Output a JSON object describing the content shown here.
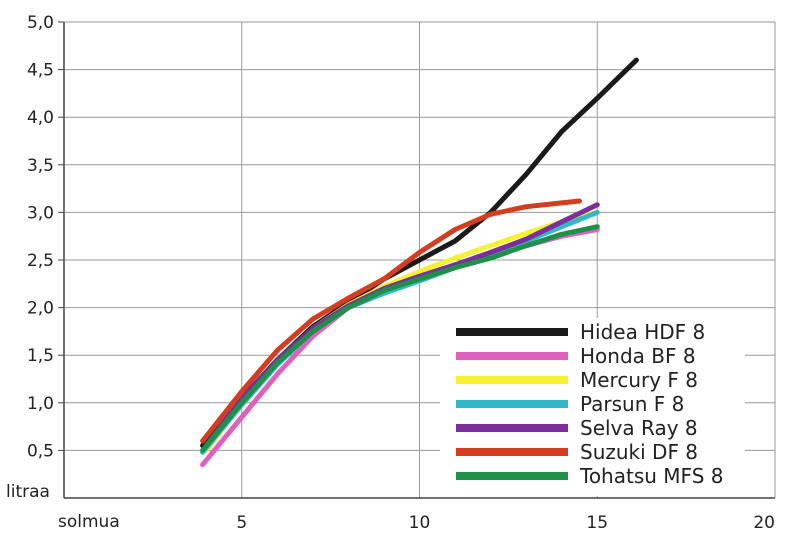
{
  "chart_data": {
    "type": "line",
    "title": "",
    "xlabel": "solmua",
    "ylabel": "litraa",
    "xlim": [
      0,
      20
    ],
    "ylim": [
      0,
      5.0
    ],
    "xticks": [
      5,
      10,
      15,
      20
    ],
    "yticks": [
      0.5,
      1.0,
      1.5,
      2.0,
      2.5,
      3.0,
      3.5,
      4.0,
      4.5,
      5.0
    ],
    "ytick_labels": [
      "0,5",
      "1,0",
      "1,5",
      "2,0",
      "2,5",
      "3,0",
      "3,5",
      "4,0",
      "4,5",
      "5,0"
    ],
    "xtick_labels": [
      "5",
      "10",
      "15",
      "20"
    ],
    "grid": true,
    "legend_position": "bottom-right",
    "series": [
      {
        "name": "Hidea HDF 8",
        "color": "#1a1a1a",
        "points": [
          [
            3.9,
            0.55
          ],
          [
            5,
            1.05
          ],
          [
            6,
            1.45
          ],
          [
            7,
            1.8
          ],
          [
            8,
            2.05
          ],
          [
            9,
            2.3
          ],
          [
            10,
            2.5
          ],
          [
            11,
            2.7
          ],
          [
            12,
            3.0
          ],
          [
            13,
            3.4
          ],
          [
            14,
            3.85
          ],
          [
            15,
            4.2
          ],
          [
            16.1,
            4.6
          ]
        ]
      },
      {
        "name": "Honda BF 8",
        "color": "#e060c0",
        "points": [
          [
            3.9,
            0.35
          ],
          [
            5,
            0.85
          ],
          [
            6,
            1.3
          ],
          [
            7,
            1.7
          ],
          [
            8,
            2.0
          ],
          [
            9,
            2.2
          ],
          [
            10,
            2.3
          ],
          [
            11,
            2.45
          ],
          [
            12,
            2.55
          ],
          [
            13,
            2.65
          ],
          [
            14,
            2.75
          ],
          [
            15,
            2.82
          ]
        ]
      },
      {
        "name": "Mercury F 8",
        "color": "#f8f032",
        "points": [
          [
            4,
            0.5
          ],
          [
            5,
            1.0
          ],
          [
            6,
            1.42
          ],
          [
            7,
            1.78
          ],
          [
            8,
            2.03
          ],
          [
            9,
            2.22
          ],
          [
            10,
            2.38
          ],
          [
            11,
            2.52
          ],
          [
            12,
            2.65
          ],
          [
            13,
            2.78
          ],
          [
            14,
            2.9
          ],
          [
            15,
            3.0
          ]
        ]
      },
      {
        "name": "Parsun F 8",
        "color": "#30b8c8",
        "points": [
          [
            3.9,
            0.48
          ],
          [
            5,
            0.98
          ],
          [
            6,
            1.4
          ],
          [
            7,
            1.75
          ],
          [
            8,
            2.0
          ],
          [
            9,
            2.15
          ],
          [
            10,
            2.28
          ],
          [
            11,
            2.42
          ],
          [
            12,
            2.55
          ],
          [
            13,
            2.7
          ],
          [
            14,
            2.85
          ],
          [
            15,
            3.0
          ]
        ]
      },
      {
        "name": "Selva Ray 8",
        "color": "#7a2f9a",
        "points": [
          [
            4,
            0.55
          ],
          [
            5,
            1.05
          ],
          [
            6,
            1.45
          ],
          [
            7,
            1.78
          ],
          [
            8,
            2.02
          ],
          [
            9,
            2.2
          ],
          [
            10,
            2.33
          ],
          [
            11,
            2.45
          ],
          [
            12,
            2.58
          ],
          [
            13,
            2.72
          ],
          [
            14,
            2.9
          ],
          [
            15,
            3.08
          ]
        ]
      },
      {
        "name": "Suzuki DF 8",
        "color": "#d43d1f",
        "points": [
          [
            3.9,
            0.6
          ],
          [
            5,
            1.12
          ],
          [
            6,
            1.55
          ],
          [
            7,
            1.88
          ],
          [
            8,
            2.1
          ],
          [
            9,
            2.3
          ],
          [
            10,
            2.58
          ],
          [
            11,
            2.82
          ],
          [
            12,
            2.98
          ],
          [
            13,
            3.06
          ],
          [
            14,
            3.1
          ],
          [
            14.5,
            3.12
          ]
        ]
      },
      {
        "name": "Tohatsu MFS 8",
        "color": "#1f9048",
        "points": [
          [
            3.9,
            0.5
          ],
          [
            5,
            1.0
          ],
          [
            6,
            1.42
          ],
          [
            7,
            1.75
          ],
          [
            8,
            2.0
          ],
          [
            9,
            2.18
          ],
          [
            10,
            2.3
          ],
          [
            11,
            2.42
          ],
          [
            12,
            2.52
          ],
          [
            13,
            2.65
          ],
          [
            14,
            2.77
          ],
          [
            15,
            2.85
          ]
        ]
      }
    ]
  }
}
